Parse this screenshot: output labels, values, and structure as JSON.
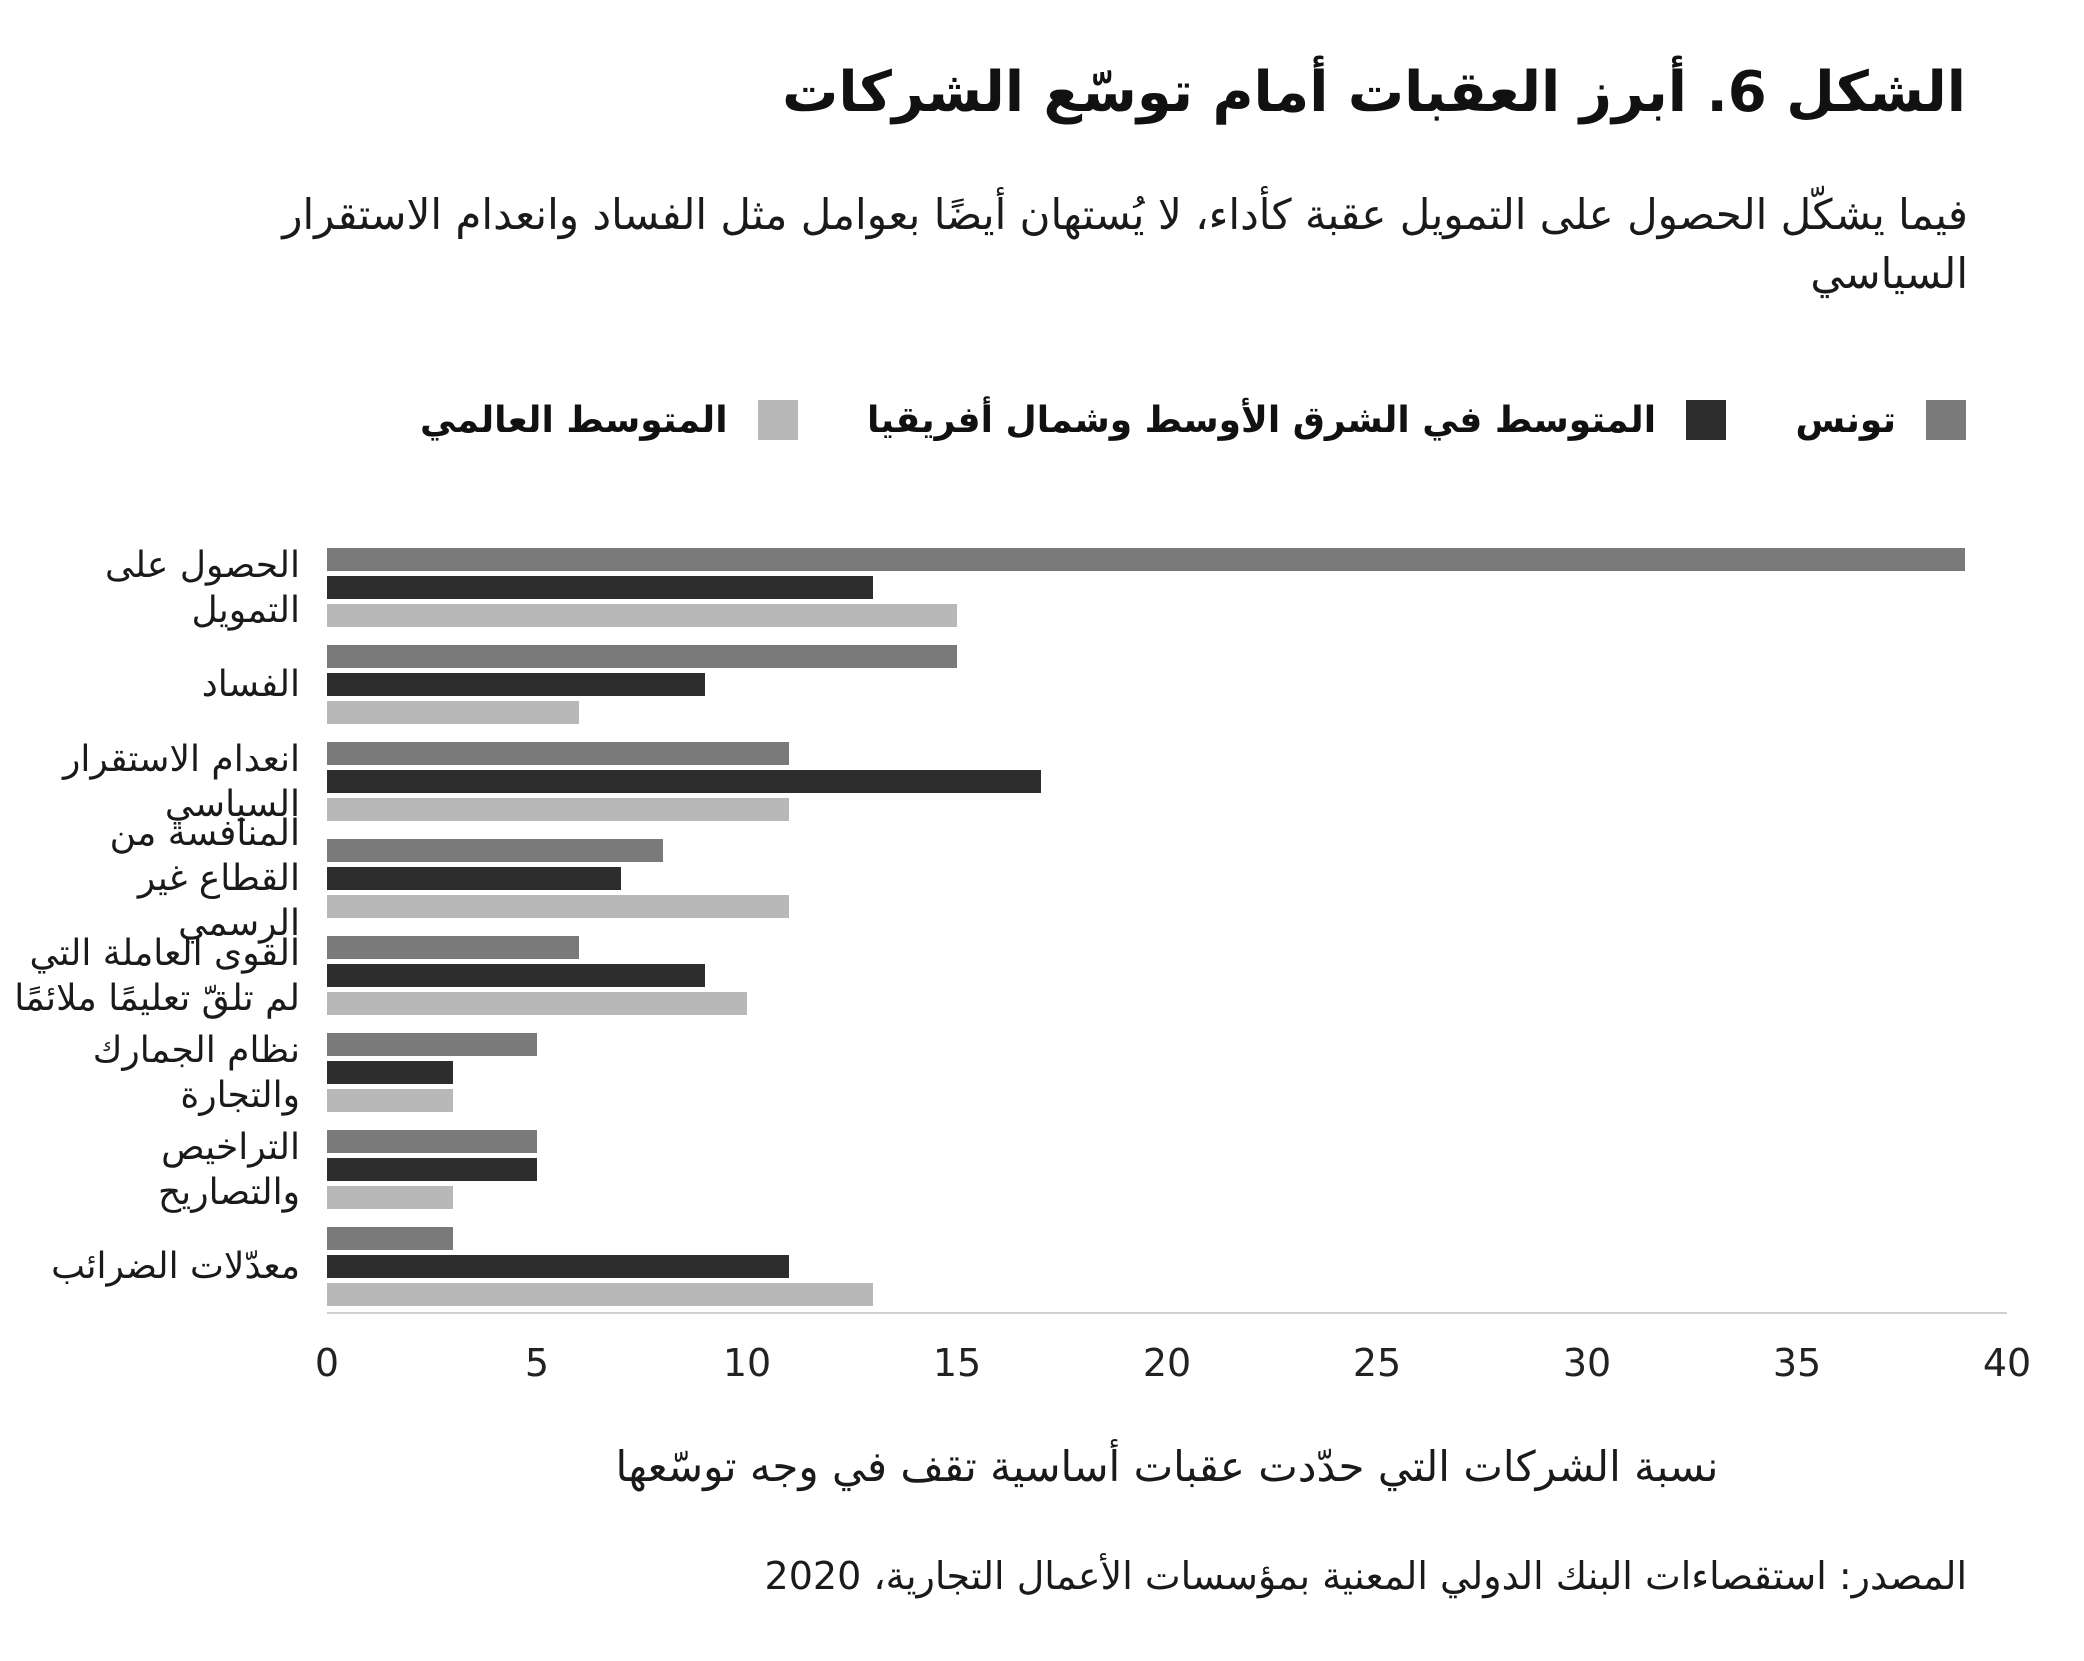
{
  "figure": {
    "title": "الشكل 6. أبرز العقبات أمام توسّع الشركات",
    "subtitle": "فيما يشكّل الحصول على التمويل عقبة كأداء، لا يُستهان أيضًا بعوامل مثل الفساد وانعدام الاستقرار السياسي",
    "xlabel": "نسبة الشركات التي حدّدت عقبات أساسية تقف في وجه توسّعها",
    "source": "المصدر: استقصاءات البنك الدولي المعنية بمؤسسات الأعمال التجارية، 2020"
  },
  "legend": [
    {
      "label": "تونس",
      "color": "#7a7a7a"
    },
    {
      "label": "المتوسط في الشرق الأوسط وشمال أفريقيا",
      "color": "#2d2d2d"
    },
    {
      "label": "المتوسط العالمي",
      "color": "#b8b8b8"
    }
  ],
  "chart_data": {
    "type": "bar",
    "orientation": "horizontal",
    "title": "الشكل 6. أبرز العقبات أمام توسّع الشركات",
    "xlabel": "نسبة الشركات التي حدّدت عقبات أساسية تقف في وجه توسّعها",
    "xlim": [
      0,
      40
    ],
    "xticks": [
      0,
      5,
      10,
      15,
      20,
      25,
      30,
      35,
      40
    ],
    "grid": false,
    "legend_position": "top",
    "categories": [
      "الحصول على التمويل",
      "الفساد",
      "انعدام الاستقرار السياسي",
      "المنافسة من القطاع غير الرسمي",
      "القوى العاملة التي لم تلقّ تعليمًا ملائمًا",
      "نظام الجمارك والتجارة",
      "التراخيص والتصاريح",
      "معدّلات الضرائب"
    ],
    "series": [
      {
        "name": "تونس",
        "color": "#7a7a7a",
        "values": [
          39,
          15,
          11,
          8,
          6,
          5,
          5,
          3
        ]
      },
      {
        "name": "المتوسط في الشرق الأوسط وشمال أفريقيا",
        "color": "#2d2d2d",
        "values": [
          13,
          9,
          17,
          7,
          9,
          3,
          5,
          11
        ]
      },
      {
        "name": "المتوسط العالمي",
        "color": "#b8b8b8",
        "values": [
          15,
          6,
          11,
          11,
          10,
          3,
          3,
          13
        ]
      }
    ]
  }
}
